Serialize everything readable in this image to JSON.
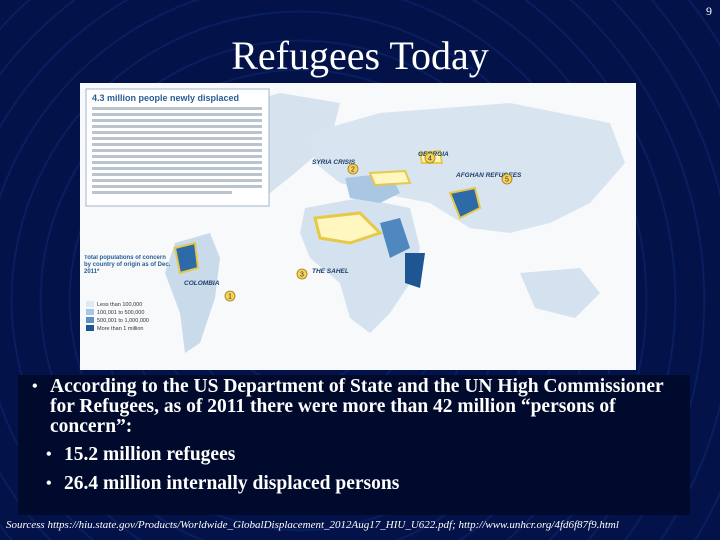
{
  "slide_number": "9",
  "title": "Refugees Today",
  "map": {
    "heading": "4.3 million people newly displaced",
    "labels": [
      "SYRIA CRISIS",
      "GEORGIA",
      "AFGHAN REFUGEES",
      "THE SAHEL",
      "COLOMBIA"
    ],
    "markers": [
      "1",
      "2",
      "3",
      "4",
      "5"
    ],
    "legend_title": "Total populations of concern by country of origin as of Dec. 2011*",
    "legend_items": [
      "Less than 100,000",
      "100,001 to 500,000",
      "500,001 to 1,000,000",
      "More than 1 million"
    ]
  },
  "bullets": [
    {
      "text": "According to the US Department of State and the UN High Commissioner for Refugees, as of 2011 there were more than 42 million “persons of concern”:",
      "sub": [
        "15.2 million refugees",
        "26.4 million internally displaced persons"
      ]
    }
  ],
  "source": "Sourcess https://hiu.state.gov/Products/Worldwide_GlobalDisplacement_2012Aug17_HIU_U622.pdf; http://www.unhcr.org/4fd6f87f9.html"
}
